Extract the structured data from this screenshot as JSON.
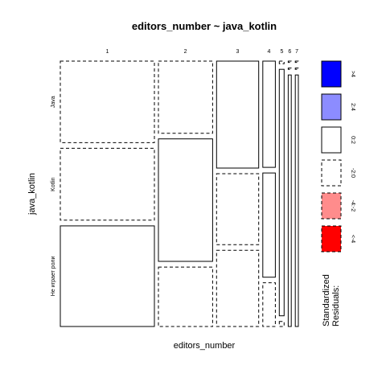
{
  "chart_data": {
    "type": "mosaic",
    "title": "editors_number ~ java_kotlin",
    "xlabel": "editors_number",
    "ylabel": "java_kotlin",
    "x_categories": [
      "1",
      "2",
      "3",
      "4",
      "5",
      "6",
      "7"
    ],
    "y_categories": [
      "Java",
      "Kotlin",
      "Не играет роли"
    ],
    "x_proportions": [
      0.368,
      0.212,
      0.165,
      0.049,
      0.019,
      0.012,
      0.012
    ],
    "cells": [
      {
        "x": "1",
        "y": "Java",
        "share": 0.321,
        "residual_band": "-2:0"
      },
      {
        "x": "1",
        "y": "Kotlin",
        "share": 0.283,
        "residual_band": "-2:0"
      },
      {
        "x": "1",
        "y": "Не играет роли",
        "share": 0.396,
        "residual_band": "0:2"
      },
      {
        "x": "2",
        "y": "Java",
        "share": 0.284,
        "residual_band": "-2:0"
      },
      {
        "x": "2",
        "y": "Kotlin",
        "share": 0.482,
        "residual_band": "0:2"
      },
      {
        "x": "2",
        "y": "Не играет роли",
        "share": 0.234,
        "residual_band": "-2:0"
      },
      {
        "x": "3",
        "y": "Java",
        "share": 0.421,
        "residual_band": "0:2"
      },
      {
        "x": "3",
        "y": "Kotlin",
        "share": 0.279,
        "residual_band": "-2:0"
      },
      {
        "x": "3",
        "y": "Не играет роли",
        "share": 0.3,
        "residual_band": "-2:0"
      },
      {
        "x": "4",
        "y": "Java",
        "share": 0.418,
        "residual_band": "0:2"
      },
      {
        "x": "4",
        "y": "Kotlin",
        "share": 0.41,
        "residual_band": "0:2"
      },
      {
        "x": "4",
        "y": "Не играет роли",
        "share": 0.172,
        "residual_band": "-2:0"
      },
      {
        "x": "5",
        "y": "Java",
        "share": 0.01,
        "residual_band": "-2:0"
      },
      {
        "x": "5",
        "y": "Kotlin",
        "share": 0.97,
        "residual_band": "0:2"
      },
      {
        "x": "5",
        "y": "Не играет роли",
        "share": 0.02,
        "residual_band": "-2:0"
      },
      {
        "x": "6",
        "y": "Java",
        "share": 0.005,
        "residual_band": "-2:0"
      },
      {
        "x": "6",
        "y": "Kotlin",
        "share": 0.005,
        "residual_band": "-2:0"
      },
      {
        "x": "6",
        "y": "Не играет роли",
        "share": 0.99,
        "residual_band": "0:2"
      },
      {
        "x": "7",
        "y": "Java",
        "share": 0.005,
        "residual_band": "-2:0"
      },
      {
        "x": "7",
        "y": "Kotlin",
        "share": 0.005,
        "residual_band": "-2:0"
      },
      {
        "x": "7",
        "y": "Не играет роли",
        "share": 0.99,
        "residual_band": "0:2"
      }
    ],
    "legend": {
      "title_lines": [
        "Standardized",
        "Residuals:"
      ],
      "placement": "right",
      "bands": [
        {
          "label": ">4",
          "color": "#0000ff",
          "dashed": false
        },
        {
          "label": "2:4",
          "color": "#8c8cff",
          "dashed": false
        },
        {
          "label": "0:2",
          "color": "#ffffff",
          "dashed": false
        },
        {
          "label": "-2:0",
          "color": "#ffffff",
          "dashed": true
        },
        {
          "label": "-4:-2",
          "color": "#ff8c8c",
          "dashed": true
        },
        {
          "label": "<-4",
          "color": "#ff0000",
          "dashed": true
        }
      ]
    }
  }
}
